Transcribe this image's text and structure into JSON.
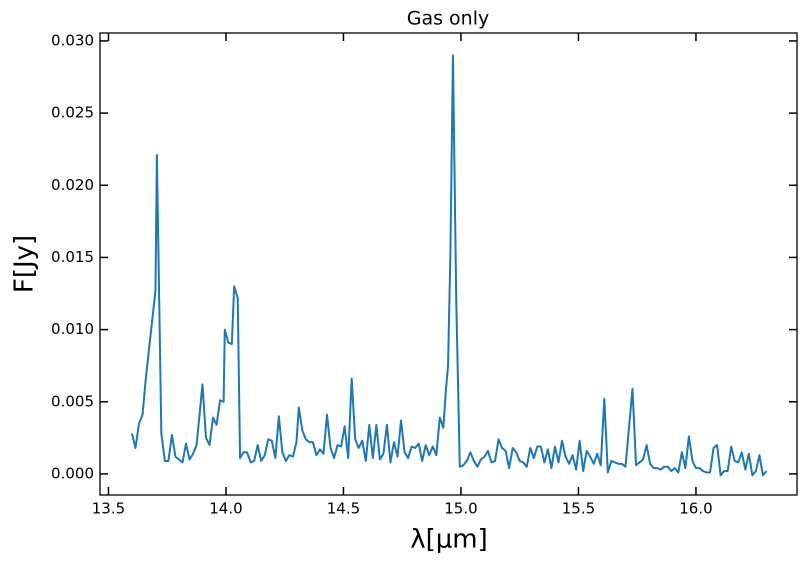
{
  "chart_data": {
    "type": "line",
    "title": "Gas only",
    "x_label": "λ[μm]",
    "y_label": "F[Jy]",
    "color": "#1f77b4",
    "x": [
      13.6,
      13.615,
      13.63,
      13.645,
      13.66,
      13.675,
      13.69,
      13.7,
      13.706,
      13.725,
      13.74,
      13.755,
      13.77,
      13.785,
      13.8,
      13.815,
      13.83,
      13.845,
      13.86,
      13.875,
      13.89,
      13.9,
      13.915,
      13.93,
      13.945,
      13.96,
      13.975,
      13.99,
      13.995,
      14.01,
      14.025,
      14.035,
      14.05,
      14.06,
      14.075,
      14.09,
      14.105,
      14.12,
      14.135,
      14.15,
      14.165,
      14.18,
      14.195,
      14.21,
      14.225,
      14.24,
      14.255,
      14.27,
      14.285,
      14.3,
      14.31,
      14.325,
      14.34,
      14.355,
      14.37,
      14.385,
      14.4,
      14.415,
      14.43,
      14.445,
      14.46,
      14.475,
      14.49,
      14.505,
      14.52,
      14.535,
      14.55,
      14.565,
      14.58,
      14.595,
      14.61,
      14.625,
      14.64,
      14.655,
      14.67,
      14.685,
      14.7,
      14.715,
      14.73,
      14.745,
      14.76,
      14.775,
      14.79,
      14.805,
      14.82,
      14.835,
      14.85,
      14.865,
      14.88,
      14.895,
      14.91,
      14.925,
      14.935,
      14.945,
      14.955,
      14.966,
      14.98,
      14.995,
      15.01,
      15.025,
      15.04,
      15.055,
      15.07,
      15.085,
      15.1,
      15.115,
      15.13,
      15.145,
      15.16,
      15.175,
      15.19,
      15.205,
      15.22,
      15.235,
      15.25,
      15.265,
      15.28,
      15.295,
      15.31,
      15.325,
      15.34,
      15.355,
      15.37,
      15.385,
      15.4,
      15.415,
      15.43,
      15.445,
      15.46,
      15.475,
      15.49,
      15.505,
      15.52,
      15.535,
      15.55,
      15.565,
      15.58,
      15.595,
      15.61,
      15.625,
      15.64,
      15.655,
      15.67,
      15.685,
      15.7,
      15.73,
      15.745,
      15.76,
      15.775,
      15.79,
      15.805,
      15.82,
      15.835,
      15.85,
      15.865,
      15.88,
      15.895,
      15.91,
      15.925,
      15.94,
      15.955,
      15.97,
      15.985,
      16.0,
      16.015,
      16.03,
      16.045,
      16.06,
      16.075,
      16.09,
      16.105,
      16.12,
      16.135,
      16.15,
      16.165,
      16.18,
      16.195,
      16.21,
      16.225,
      16.24,
      16.255,
      16.27,
      16.285,
      16.3
    ],
    "values": [
      0.0028,
      0.0018,
      0.0035,
      0.0041,
      0.0068,
      0.009,
      0.0112,
      0.0127,
      0.0221,
      0.0028,
      0.0009,
      0.0009,
      0.0027,
      0.0012,
      0.001,
      0.0008,
      0.0021,
      0.001,
      0.0014,
      0.002,
      0.0045,
      0.0062,
      0.0025,
      0.002,
      0.0039,
      0.0034,
      0.0051,
      0.005,
      0.01,
      0.0091,
      0.009,
      0.013,
      0.0122,
      0.0011,
      0.0015,
      0.0015,
      0.0008,
      0.0009,
      0.002,
      0.0009,
      0.0013,
      0.0024,
      0.0023,
      0.0011,
      0.004,
      0.0015,
      0.0009,
      0.0013,
      0.0012,
      0.0022,
      0.0046,
      0.003,
      0.0024,
      0.0022,
      0.0022,
      0.0013,
      0.0017,
      0.0014,
      0.0041,
      0.0018,
      0.0011,
      0.002,
      0.0019,
      0.0033,
      0.0011,
      0.0066,
      0.0024,
      0.0018,
      0.0023,
      0.0009,
      0.0034,
      0.0011,
      0.0034,
      0.001,
      0.0014,
      0.0034,
      0.0008,
      0.0022,
      0.0012,
      0.0037,
      0.0015,
      0.0011,
      0.0019,
      0.0018,
      0.0021,
      0.0009,
      0.002,
      0.0013,
      0.0019,
      0.0013,
      0.0039,
      0.0032,
      0.0056,
      0.0075,
      0.0152,
      0.029,
      0.012,
      0.0005,
      0.0006,
      0.0009,
      0.0015,
      0.0009,
      0.0005,
      0.001,
      0.0012,
      0.0016,
      0.0008,
      0.0009,
      0.0024,
      0.0018,
      0.0016,
      0.0004,
      0.0018,
      0.0015,
      0.0009,
      0.0008,
      0.0005,
      0.0018,
      0.0011,
      0.0019,
      0.0019,
      0.0008,
      0.0017,
      0.0004,
      0.0019,
      0.0008,
      0.0023,
      0.0012,
      0.0007,
      0.0013,
      0.0003,
      0.0023,
      0.0002,
      0.0016,
      0.0012,
      0.0007,
      0.0014,
      0.0006,
      0.0052,
      0.0001,
      0.0009,
      0.0008,
      0.0007,
      0.0007,
      0.0005,
      0.0059,
      0.0006,
      0.0008,
      0.001,
      0.002,
      0.0007,
      0.0004,
      0.0004,
      0.0003,
      0.0005,
      0.0005,
      0.0002,
      0.0004,
      0.0001,
      0.0015,
      0.0004,
      0.0026,
      0.0009,
      0.0004,
      0.0004,
      0.0002,
      0.0001,
      0.0001,
      0.0018,
      0.002,
      -0.0001,
      0.0002,
      0.0002,
      0.0019,
      0.0009,
      0.0008,
      0.0015,
      0.0003,
      0.0014,
      -0.0001,
      0.0002,
      0.0013,
      -0.0001,
      0.0002
    ],
    "xlim": [
      13.464,
      16.43
    ],
    "ylim": [
      -0.00146,
      0.03055
    ],
    "xticks": [
      13.5,
      {
        "value": 14,
        "label": "14.0"
      },
      14.5,
      {
        "value": 15,
        "label": "15.0"
      },
      15.5,
      {
        "value": 16,
        "label": "16.0"
      }
    ],
    "yticks": [
      {
        "value": 0,
        "label": "0.000"
      },
      0.005,
      {
        "value": 0.01,
        "label": "0.010"
      },
      0.015,
      {
        "value": 0.02,
        "label": "0.020"
      },
      0.025,
      {
        "value": 0.03,
        "label": "0.030"
      }
    ],
    "grid": false
  }
}
